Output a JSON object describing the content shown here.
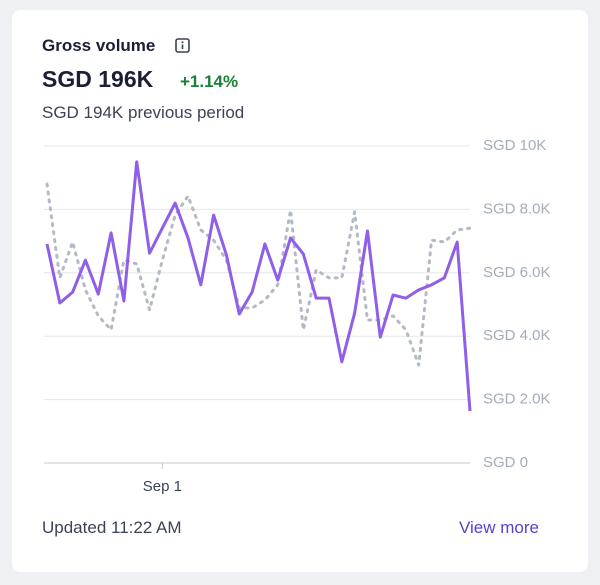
{
  "card": {
    "title": "Gross volume",
    "value": "SGD 196K",
    "change": "+1.14%",
    "previous": "SGD 194K previous period",
    "updated": "Updated 11:22 AM",
    "link": "View more"
  },
  "chart_data": {
    "type": "line",
    "categories": [
      null,
      null,
      null,
      null,
      null,
      null,
      null,
      null,
      null,
      "Sep 1",
      null,
      null,
      null,
      null,
      null,
      null,
      null,
      null,
      null,
      null,
      null,
      null,
      null,
      null,
      null,
      null,
      null,
      null,
      null,
      null,
      null,
      null,
      null,
      null
    ],
    "series": [
      {
        "color": "#8f5fe8",
        "style": "solid",
        "values": [
          6910,
          5050,
          5390,
          6400,
          5330,
          7260,
          5110,
          9500,
          6620,
          7410,
          8200,
          7100,
          5620,
          7820,
          6560,
          4700,
          5390,
          6910,
          5770,
          7100,
          6590,
          5200,
          5200,
          3190,
          4730,
          7320,
          3970,
          5300,
          5200,
          5460,
          5620,
          5840,
          6970,
          1640
        ]
      },
      {
        "color": "#b3bac5",
        "style": "dotted",
        "values": [
          8800,
          5840,
          6970,
          5460,
          4640,
          4200,
          6400,
          6280,
          4830,
          6400,
          7820,
          8420,
          7350,
          7030,
          6400,
          4890,
          4890,
          5140,
          5620,
          7980,
          4200,
          6090,
          5840,
          5840,
          7920,
          4510,
          4510,
          4640,
          4200,
          3090,
          7030,
          6970,
          7350,
          7410
        ]
      }
    ],
    "ylim": [
      0,
      10000
    ],
    "yticks": [
      {
        "value": 0,
        "label": "SGD 0"
      },
      {
        "value": 2000,
        "label": "SGD 2.0K"
      },
      {
        "value": 4000,
        "label": "SGD 4.0K"
      },
      {
        "value": 6000,
        "label": "SGD 6.0K"
      },
      {
        "value": 8000,
        "label": "SGD 8.0K"
      },
      {
        "value": 10000,
        "label": "SGD 10K"
      }
    ],
    "grid": true
  }
}
